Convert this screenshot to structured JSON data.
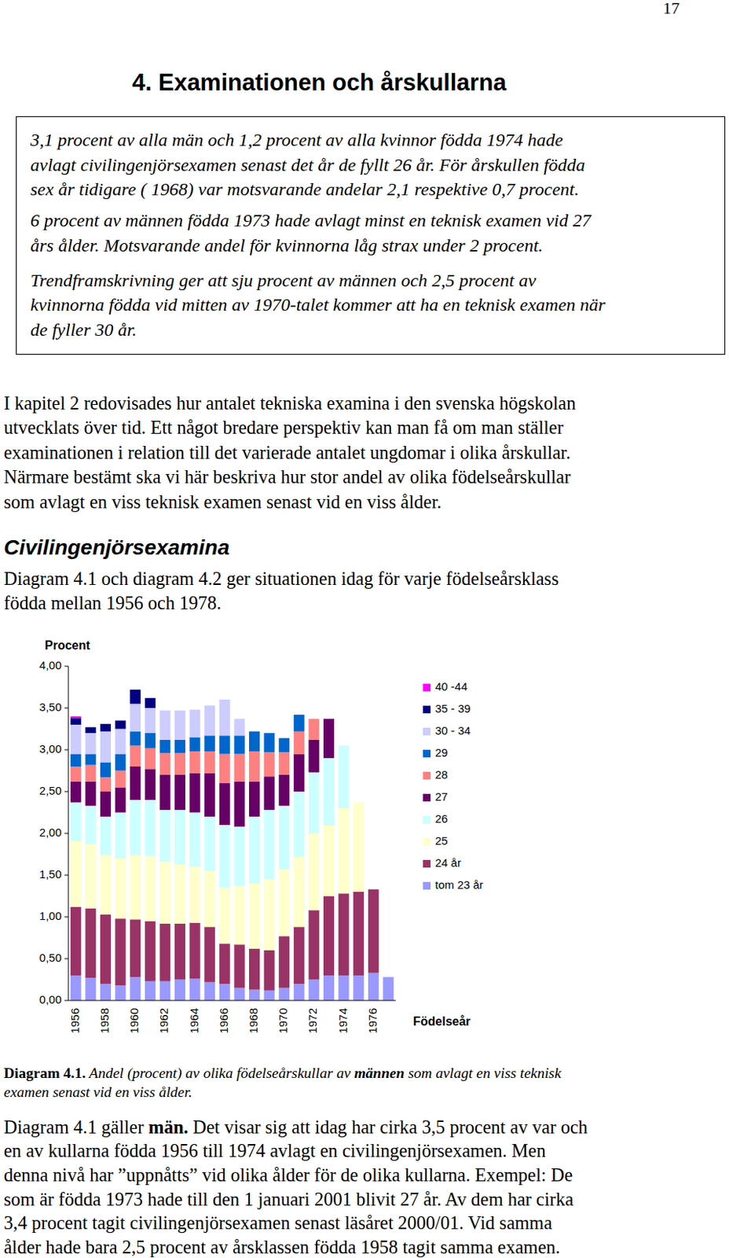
{
  "page_number": "17",
  "heading": "4. Examinationen och årskullarna",
  "summary_box": [
    [
      "3,1 procent av alla män och 1,2 procent av alla kvinnor födda 1974 hade",
      "avlagt civilingenjörsexamen senast det år de fyllt 26 år. För årskullen födda",
      "sex år tidigare ( 1968) var motsvarande andelar 2,1 respektive 0,7 procent."
    ],
    [
      "6 procent av männen födda 1973 hade avlagt minst en teknisk examen vid 27",
      "års ålder. Motsvarande andel för kvinnorna låg strax under 2 procent."
    ],
    [
      "Trendframskrivning ger att sju procent av männen och 2,5 procent av",
      "kvinnorna födda vid mitten av 1970-talet kommer att ha en teknisk examen när",
      "de fyller 30 år."
    ]
  ],
  "intro": [
    "I kapitel 2 redovisades hur antalet tekniska examina i den svenska högskolan",
    "utvecklats över tid. Ett något bredare perspektiv kan man få om man ställer",
    "examinationen i relation till det varierade antalet ungdomar i olika årskullar.",
    "Närmare bestämt ska vi här beskriva hur stor andel av olika födelseårskullar",
    "som avlagt en viss teknisk examen senast vid en viss ålder."
  ],
  "section_title": "Civilingenjörsexamina",
  "section_intro": [
    "Diagram 4.1 och diagram 4.2 ger situationen idag för varje födelseårsklass",
    "födda mellan 1956 och 1978."
  ],
  "chart_data": {
    "type": "bar",
    "stacked": true,
    "y_label": "Procent",
    "x_label": "Födelseår",
    "categories": [
      "1956",
      null,
      "1958",
      null,
      "1960",
      null,
      "1962",
      null,
      "1964",
      null,
      "1966",
      null,
      "1968",
      null,
      "1970",
      null,
      "1972",
      null,
      "1974",
      null,
      "1976",
      null
    ],
    "ylim": [
      0,
      4
    ],
    "yticks": [
      {
        "value": 0,
        "label": "0,00"
      },
      {
        "value": 0.5,
        "label": "0,50"
      },
      {
        "value": 1,
        "label": "1,00"
      },
      {
        "value": 1.5,
        "label": "1,50"
      },
      {
        "value": 2,
        "label": "2,00"
      },
      {
        "value": 2.5,
        "label": "2,50"
      },
      {
        "value": 3,
        "label": "3,00"
      },
      {
        "value": 3.5,
        "label": "3,50"
      },
      {
        "value": 4,
        "label": "4,00"
      }
    ],
    "grid": false,
    "legend": "right",
    "series": [
      {
        "name": "tom 23 år",
        "color": "#9999ff",
        "values": [
          0.3,
          0.27,
          0.2,
          0.18,
          0.28,
          0.23,
          0.23,
          0.25,
          0.26,
          0.22,
          0.2,
          0.15,
          0.13,
          0.12,
          0.15,
          0.2,
          0.25,
          0.3,
          0.3,
          0.3,
          0.33,
          0.28
        ]
      },
      {
        "name": "24 år",
        "color": "#993366",
        "values": [
          0.82,
          0.83,
          0.83,
          0.8,
          0.69,
          0.72,
          0.69,
          0.67,
          0.67,
          0.66,
          0.48,
          0.52,
          0.49,
          0.48,
          0.62,
          0.68,
          0.83,
          0.95,
          0.98,
          1.0,
          1.0,
          null
        ]
      },
      {
        "name": "25",
        "color": "#ffffcc",
        "values": [
          0.79,
          0.77,
          0.71,
          0.72,
          0.77,
          0.78,
          0.74,
          0.71,
          0.67,
          0.67,
          0.67,
          0.7,
          0.78,
          0.85,
          0.8,
          0.84,
          0.92,
          0.85,
          1.02,
          1.07,
          null,
          null
        ]
      },
      {
        "name": "26",
        "color": "#ccffff",
        "values": [
          0.46,
          0.46,
          0.46,
          0.55,
          0.66,
          0.67,
          0.62,
          0.65,
          0.65,
          0.65,
          0.75,
          0.71,
          0.8,
          0.83,
          0.76,
          0.78,
          0.73,
          0.8,
          0.75,
          null,
          null,
          null
        ]
      },
      {
        "name": "27",
        "color": "#660066",
        "values": [
          0.25,
          0.29,
          0.3,
          0.3,
          0.4,
          0.37,
          0.42,
          0.42,
          0.47,
          0.52,
          0.5,
          0.54,
          0.42,
          0.4,
          0.37,
          0.45,
          0.39,
          0.47,
          null,
          null,
          null,
          null
        ]
      },
      {
        "name": "28",
        "color": "#ff8080",
        "values": [
          0.18,
          0.2,
          0.17,
          0.2,
          0.25,
          0.25,
          0.26,
          0.26,
          0.26,
          0.26,
          0.35,
          0.33,
          0.36,
          0.29,
          0.27,
          0.27,
          0.25,
          null,
          null,
          null,
          null,
          null
        ]
      },
      {
        "name": "29",
        "color": "#0066cc",
        "values": [
          0.15,
          0.13,
          0.18,
          0.2,
          0.17,
          0.18,
          0.16,
          0.16,
          0.17,
          0.19,
          0.22,
          0.22,
          0.24,
          0.23,
          0.17,
          0.2,
          null,
          null,
          null,
          null,
          null,
          null
        ]
      },
      {
        "name": "30 - 34",
        "color": "#ccccff",
        "values": [
          0.35,
          0.25,
          0.37,
          0.3,
          0.33,
          0.3,
          0.35,
          0.35,
          0.33,
          0.36,
          0.43,
          0.2,
          0,
          0,
          0,
          null,
          null,
          null,
          null,
          null,
          null,
          null
        ]
      },
      {
        "name": "35 - 39",
        "color": "#000080",
        "values": [
          0.08,
          0.07,
          0.09,
          0.1,
          0.17,
          0.12,
          0,
          0,
          0,
          0,
          null,
          null,
          null,
          null,
          null,
          null,
          null,
          null,
          null,
          null,
          null,
          null
        ]
      },
      {
        "name": "40 -44",
        "color": "#ff00ff",
        "values": [
          0.02,
          0,
          0,
          0,
          0,
          null,
          null,
          null,
          null,
          null,
          null,
          null,
          null,
          null,
          null,
          null,
          null,
          null,
          null,
          null,
          null,
          null
        ]
      }
    ]
  },
  "caption": [
    [
      {
        "text": "Diagram 4.1.",
        "style": "bold"
      },
      {
        "text": " Andel (procent) av olika födelseårskullar av ",
        "style": "italic"
      },
      {
        "text": "männen",
        "style": "bold-italic"
      },
      {
        "text": " som avlagt en viss teknisk",
        "style": "italic"
      }
    ],
    [
      {
        "text": "examen senast vid en viss ålder.",
        "style": "italic"
      }
    ]
  ],
  "body": [
    [
      {
        "text": "Diagram 4.1 gäller ",
        "style": "normal"
      },
      {
        "text": "män.",
        "style": "bold"
      },
      {
        "text": " Det visar sig att idag har cirka 3,5 procent av var och",
        "style": "normal"
      }
    ],
    "en av kullarna födda 1956 till 1974 avlagt en civilingenjörsexamen. Men",
    "denna nivå har ”uppnåtts” vid olika ålder för de olika kullarna. Exempel: De",
    "som är födda 1973 hade till den 1 januari 2001 blivit 27 år. Av dem har cirka",
    "3,4 procent tagit civilingenjörsexamen senast läsåret 2000/01. Vid samma",
    "ålder hade bara 2,5 procent av årsklassen födda 1958 tagit samma examen."
  ]
}
